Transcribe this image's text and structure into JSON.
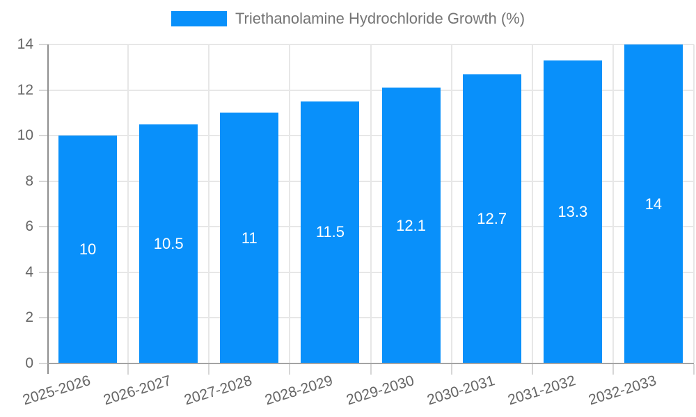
{
  "chart_data": {
    "type": "bar",
    "legend": {
      "label": "Triethanolamine Hydrochloride Growth (%)",
      "position": "top"
    },
    "categories": [
      "2025-2026",
      "2026-2027",
      "2027-2028",
      "2028-2029",
      "2029-2030",
      "2030-2031",
      "2031-2032",
      "2032-2033"
    ],
    "series": [
      {
        "name": "Triethanolamine Hydrochloride Growth (%)",
        "values": [
          10,
          10.5,
          11,
          11.5,
          12.1,
          12.7,
          13.3,
          14
        ]
      }
    ],
    "data_labels": [
      "10",
      "10.5",
      "11",
      "11.5",
      "12.1",
      "12.7",
      "13.3",
      "14"
    ],
    "xlabel": "",
    "ylabel": "",
    "ylim": [
      0,
      14
    ],
    "yticks": [
      0,
      2,
      4,
      6,
      8,
      10,
      12,
      14
    ],
    "grid": true,
    "colors": {
      "bar": "#0990fa",
      "grid": "#e7e7e7",
      "axis_label": "#666666",
      "legend_text": "#757575",
      "value_label": "#ffffff"
    }
  }
}
